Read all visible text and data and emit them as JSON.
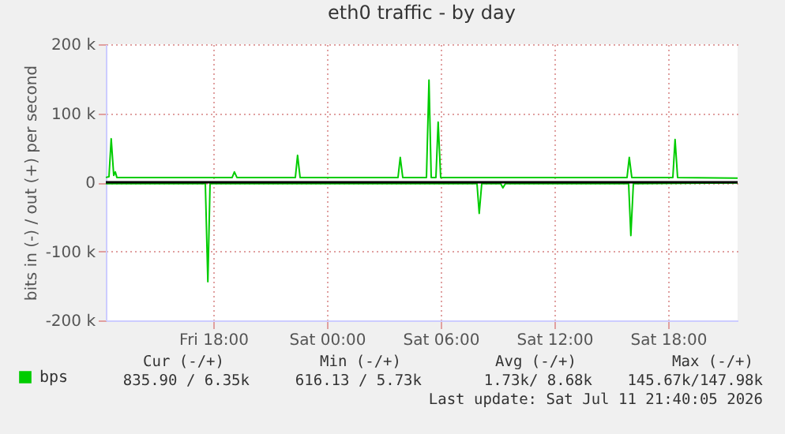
{
  "chart_data": {
    "type": "line",
    "title": "eth0 traffic - by day",
    "ylabel": "bits in (-) / out (+) per second",
    "xlim": [
      "2026-07-10T12:20",
      "2026-07-11T21:40"
    ],
    "xticks": [
      {
        "value": "2026-07-10T18:00",
        "label": "Fri 18:00"
      },
      {
        "value": "2026-07-11T00:00",
        "label": "Sat 00:00"
      },
      {
        "value": "2026-07-11T06:00",
        "label": "Sat 06:00"
      },
      {
        "value": "2026-07-11T12:00",
        "label": "Sat 12:00"
      },
      {
        "value": "2026-07-11T18:00",
        "label": "Sat 18:00"
      }
    ],
    "ylim": [
      -200,
      200
    ],
    "yticks": [
      {
        "value": -200,
        "label": "-200 k"
      },
      {
        "value": -100,
        "label": "-100 k"
      },
      {
        "value": 0,
        "label": "0"
      },
      {
        "value": 100,
        "label": "100 k"
      },
      {
        "value": 200,
        "label": "200 k"
      }
    ],
    "grid": true,
    "legend": "bottom left",
    "marker": "none",
    "line_style": "solid",
    "ref_lines": [
      {
        "axis": "y",
        "value": 0,
        "color": "#000000"
      }
    ],
    "series": [
      {
        "name": "bps",
        "color": "#00cc00",
        "x": [
          "2026-07-10T12:20",
          "2026-07-10T12:30",
          "2026-07-10T12:37",
          "2026-07-10T12:45",
          "2026-07-10T12:50",
          "2026-07-10T12:55",
          "2026-07-10T15:00",
          "2026-07-10T19:00",
          "2026-07-10T19:07",
          "2026-07-10T19:15",
          "2026-07-10T22:20",
          "2026-07-10T22:27",
          "2026-07-10T22:35",
          "2026-07-11T03:45",
          "2026-07-11T03:52",
          "2026-07-11T04:00",
          "2026-07-11T05:15",
          "2026-07-11T05:23",
          "2026-07-11T05:30",
          "2026-07-11T05:45",
          "2026-07-11T05:52",
          "2026-07-11T06:00",
          "2026-07-11T15:50",
          "2026-07-11T15:57",
          "2026-07-11T16:05",
          "2026-07-11T18:15",
          "2026-07-11T18:22",
          "2026-07-11T18:30",
          "2026-07-11T21:40"
        ],
        "values": [
          7,
          8,
          63,
          10,
          15,
          7,
          7,
          7,
          15,
          7,
          7,
          39,
          7,
          7,
          36,
          7,
          7,
          148,
          7,
          7,
          87,
          7,
          7,
          36,
          7,
          7,
          62,
          7,
          6
        ]
      },
      {
        "color": "#00cc00",
        "x": [
          "2026-07-10T12:20",
          "2026-07-10T17:35",
          "2026-07-10T17:43",
          "2026-07-10T17:50",
          "2026-07-11T07:55",
          "2026-07-11T08:02",
          "2026-07-11T08:10",
          "2026-07-11T09:10",
          "2026-07-11T09:17",
          "2026-07-11T09:25",
          "2026-07-11T15:55",
          "2026-07-11T16:02",
          "2026-07-11T16:10",
          "2026-07-11T21:40"
        ],
        "values": [
          -2,
          -2,
          -144,
          -2,
          -2,
          -45,
          -2,
          -2,
          -8,
          -2,
          -2,
          -77,
          -2,
          -1
        ]
      }
    ],
    "annotations": [
      "Cur (-/+)",
      "Min (-/+)",
      "Avg (-/+)",
      "Max (-/+)",
      "835.90 /   6.35k",
      "616.13 /   5.73k",
      "1.73k/   8.68k",
      "145.67k/147.98k",
      "Last update: Sat Jul 11 21:40:05 2026"
    ]
  }
}
